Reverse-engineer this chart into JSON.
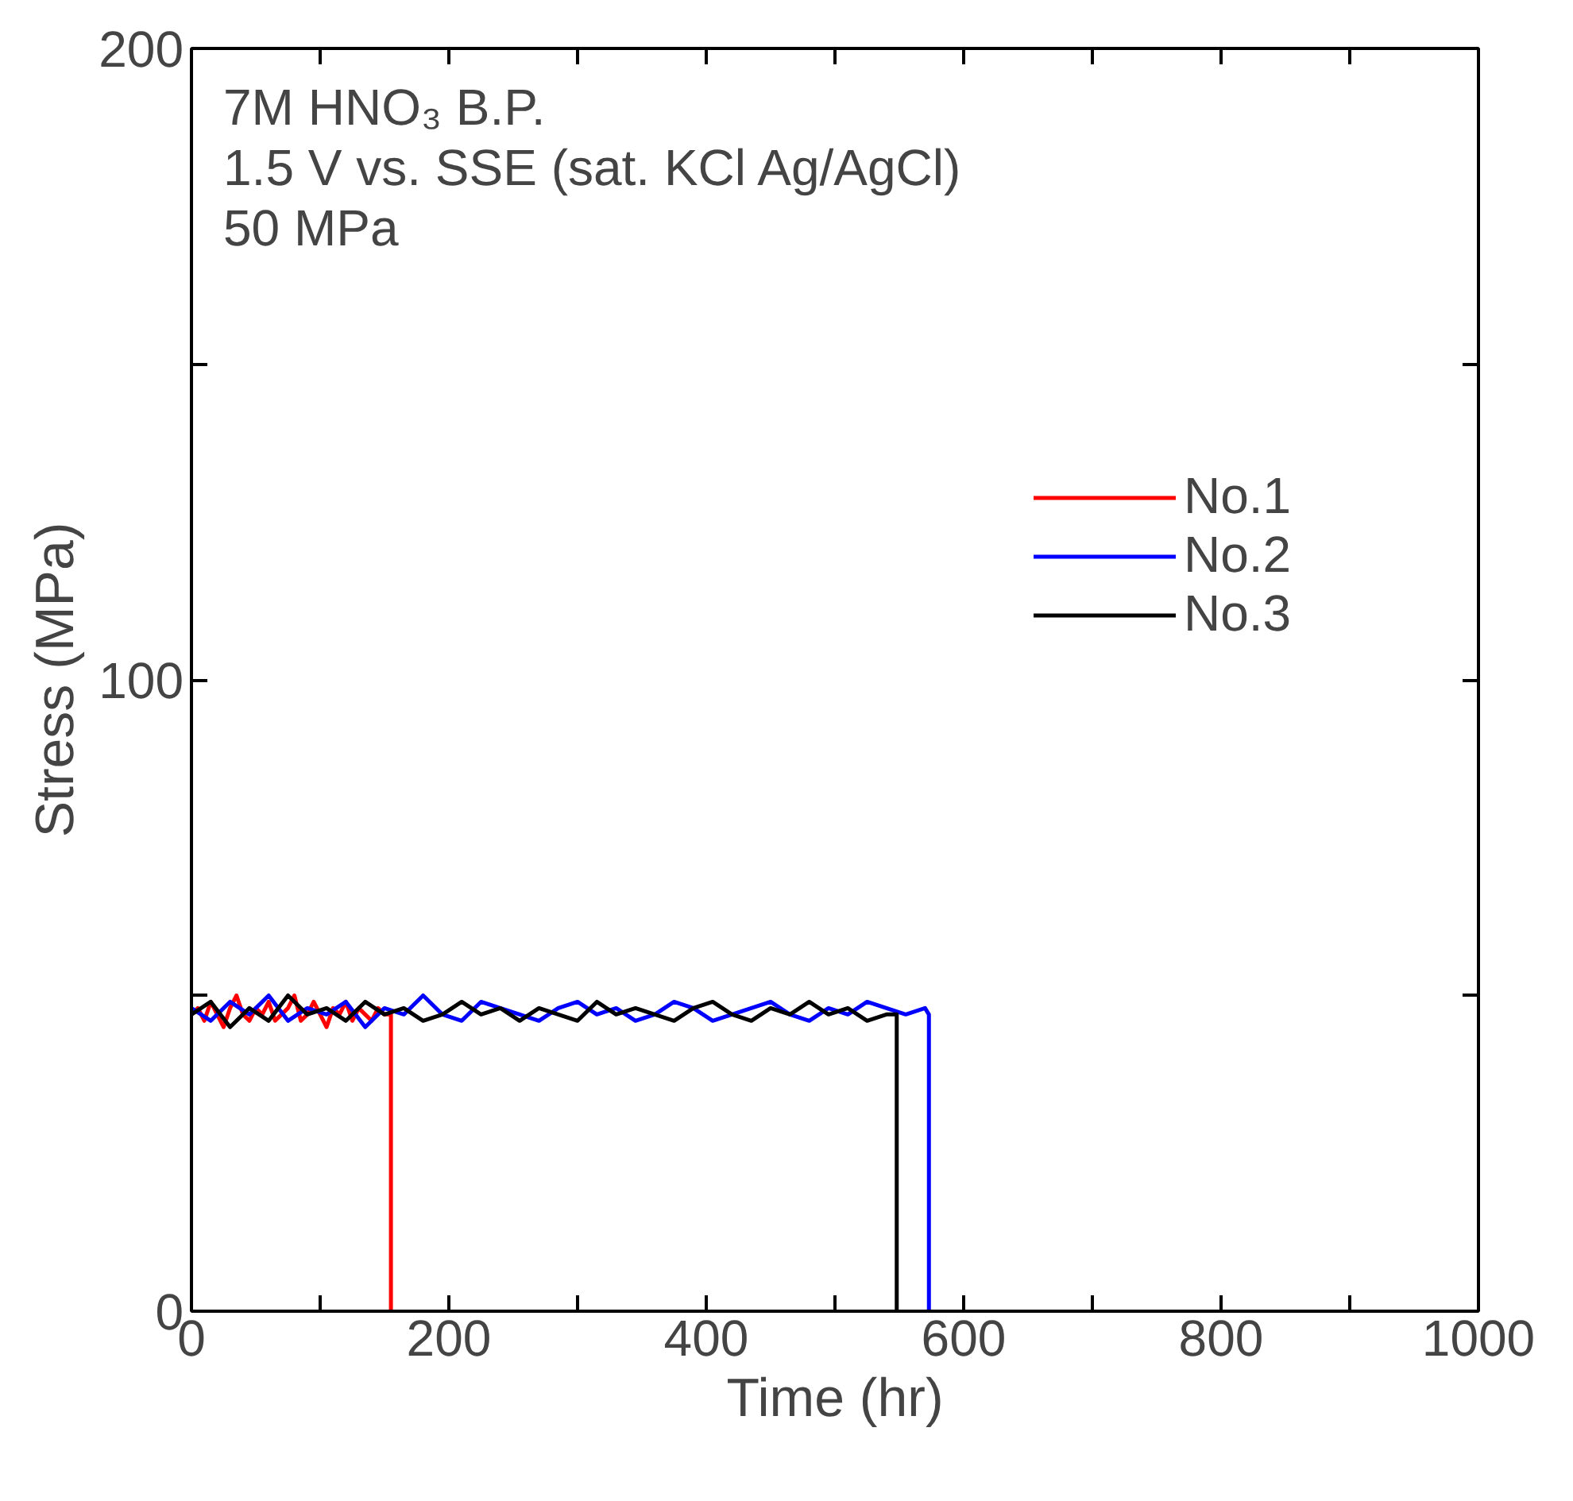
{
  "chart_data": {
    "type": "line",
    "xlabel": "Time (hr)",
    "ylabel": "Stress (MPa)",
    "xlim": [
      0,
      1000
    ],
    "ylim": [
      0,
      200
    ],
    "xticks": [
      0,
      {
        "value": 100,
        "label": null
      },
      200,
      {
        "value": 300,
        "label": null
      },
      400,
      {
        "value": 500,
        "label": null
      },
      600,
      {
        "value": 700,
        "label": null
      },
      800,
      {
        "value": 900,
        "label": null
      },
      1000
    ],
    "yticks": [
      0,
      {
        "value": 50,
        "label": null
      },
      100,
      {
        "value": 150,
        "label": null
      },
      200
    ],
    "grid": false,
    "legend": "top right",
    "marker": "none",
    "line_style": "solid",
    "annotations": [
      "7M HNO₃ B.P.",
      "1.5 V vs. SSE (sat. KCl Ag/AgCl)",
      "50 MPa"
    ],
    "series": [
      {
        "name": "No.1",
        "color": "#ff0000",
        "x": [
          0,
          5,
          10,
          15,
          20,
          25,
          30,
          35,
          40,
          45,
          50,
          55,
          60,
          65,
          70,
          75,
          80,
          85,
          90,
          95,
          100,
          105,
          110,
          115,
          120,
          125,
          130,
          135,
          140,
          145,
          150,
          155,
          155
        ],
        "values": [
          47,
          48,
          46,
          49,
          47,
          45,
          48,
          50,
          47,
          46,
          48,
          47,
          49,
          46,
          47,
          48,
          50,
          46,
          47,
          49,
          47,
          45,
          48,
          47,
          49,
          46,
          48,
          47,
          46,
          48,
          47,
          47,
          0
        ]
      },
      {
        "name": "No.2",
        "color": "#0000ff",
        "x": [
          0,
          15,
          30,
          45,
          60,
          75,
          90,
          105,
          120,
          135,
          150,
          165,
          180,
          195,
          210,
          225,
          240,
          255,
          270,
          285,
          300,
          315,
          330,
          345,
          360,
          375,
          390,
          405,
          420,
          435,
          450,
          465,
          480,
          495,
          510,
          525,
          540,
          555,
          570,
          573,
          573
        ],
        "values": [
          48,
          46,
          49,
          47,
          50,
          46,
          48,
          47,
          49,
          45,
          48,
          47,
          50,
          47,
          46,
          49,
          48,
          47,
          46,
          48,
          49,
          47,
          48,
          46,
          47,
          49,
          48,
          46,
          47,
          48,
          49,
          47,
          46,
          48,
          47,
          49,
          48,
          47,
          48,
          47,
          0
        ]
      },
      {
        "name": "No.3",
        "color": "#000000",
        "x": [
          0,
          15,
          30,
          45,
          60,
          75,
          90,
          105,
          120,
          135,
          150,
          165,
          180,
          195,
          210,
          225,
          240,
          255,
          270,
          285,
          300,
          315,
          330,
          345,
          360,
          375,
          390,
          405,
          420,
          435,
          450,
          465,
          480,
          495,
          510,
          525,
          540,
          548,
          548
        ],
        "values": [
          47,
          49,
          45,
          48,
          46,
          50,
          47,
          48,
          46,
          49,
          47,
          48,
          46,
          47,
          49,
          47,
          48,
          46,
          48,
          47,
          46,
          49,
          47,
          48,
          47,
          46,
          48,
          49,
          47,
          46,
          48,
          47,
          49,
          47,
          48,
          46,
          47,
          47,
          0
        ]
      }
    ]
  }
}
